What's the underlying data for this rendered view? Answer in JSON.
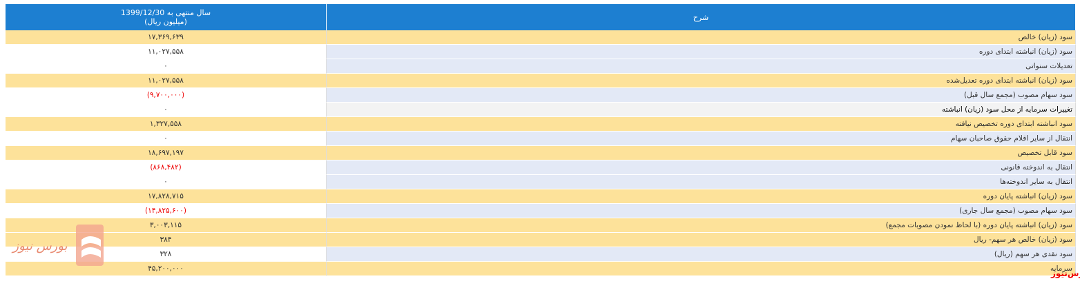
{
  "header": {
    "value_column": [
      "سال منتهی به 1399/12/30",
      "(میلیون ریال)"
    ],
    "label_column": "شرح"
  },
  "table": {
    "rows": [
      [
        "سود (زیان) خالص",
        "۱۷,۳۶۹,۶۳۹"
      ],
      [
        "سود (زیان) انباشته ابتدای دوره",
        "۱۱,۰۲۷,۵۵۸"
      ],
      [
        "تعدیلات سنواتی",
        "۰"
      ],
      [
        "سود (زیان) انباشته ابتدای دوره تعدیل‌شده",
        "۱۱,۰۲۷,۵۵۸"
      ],
      [
        "سود سهام مصوب (مجمع سال قبل)",
        "(۹,۷۰۰,۰۰۰)"
      ],
      [
        "تغییرات سرمایه از محل سود (زیان) انباشته",
        "۰"
      ],
      [
        "سود انباشته ابتدای دوره تخصیص نیافته",
        "۱,۳۲۷,۵۵۸"
      ],
      [
        "انتقال از سایر اقلام حقوق صاحبان سهام",
        "۰"
      ],
      [
        "سود قابل تخصیص",
        "۱۸,۶۹۷,۱۹۷"
      ],
      [
        "انتقال به اندوخته قانونی",
        "(۸۶۸,۴۸۲)"
      ],
      [
        "انتقال به سایر اندوخته‌ها",
        "۰"
      ],
      [
        "سود (زیان) انباشته پایان دوره",
        "۱۷,۸۲۸,۷۱۵"
      ],
      [
        "سود سهام مصوب (مجمع سال جاری)",
        "(۱۴,۸۲۵,۶۰۰)"
      ],
      [
        "سود (زیان) انباشته پایان دوره (با لحاظ نمودن مصوبات مجمع)",
        "۳,۰۰۳,۱۱۵"
      ],
      [
        "سود (زیان) خالص هر سهم- ریال",
        "۳۸۴"
      ],
      [
        "سود نقدی هر سهم (ریال)",
        "۳۲۸"
      ],
      [
        "سرمایه",
        "۴۵,۲۰۰,۰۰۰"
      ]
    ]
  },
  "watermark": {
    "logo_text": "بورس نیوز",
    "corner_text": "بورس‌نیوز"
  }
}
